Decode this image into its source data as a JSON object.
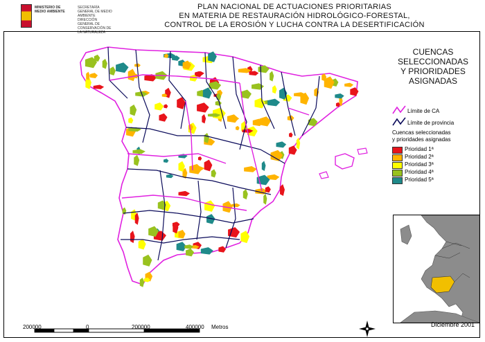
{
  "header": {
    "ministry_name": "MINISTERIO DE MEDIO AMBIENTE",
    "ministry_sub": "SECRETARÍA GENERAL DE MEDIO AMBIENTE DIRECCIÓN GENERAL DE CONSERVACIÓN DE LA NATURALEZA",
    "title_lines": [
      "PLAN NACIONAL DE ACTUACIONES PRIORITARIAS",
      "EN MATERIA DE RESTAURACIÓN HIDROLÓGICO-FORESTAL,",
      "CONTROL DE LA EROSIÓN Y LUCHA CONTRA LA DESERTIFICACIÓN"
    ]
  },
  "legend": {
    "heading_lines": [
      "CUENCAS",
      "SELECCIONADAS",
      "Y PRIORIDADES",
      "ASIGNADAS"
    ],
    "ca_label": "Límite de CA",
    "province_label": "Límite de provincia",
    "selected_lines": [
      "Cuencas seleccionadas",
      "y prioridades asignadas"
    ],
    "priorities": [
      {
        "label": "Prioridad 1ª",
        "color": "#e8141b"
      },
      {
        "label": "Prioridad 2ª",
        "color": "#ffb400"
      },
      {
        "label": "Prioridad 3ª",
        "color": "#ffff00"
      },
      {
        "label": "Prioridad 4ª",
        "color": "#99c21f"
      },
      {
        "label": "Prioridad 5ª",
        "color": "#1f8a8a"
      }
    ],
    "ca_color": "#e020e0",
    "province_color": "#0a0a5a"
  },
  "scale": {
    "labels": [
      "200000",
      "0",
      "200000",
      "400000",
      "Metros"
    ]
  },
  "date": "Diciembre 2001",
  "icons": {
    "north": "north-arrow-icon",
    "crest": "coat-of-arms-icon"
  }
}
